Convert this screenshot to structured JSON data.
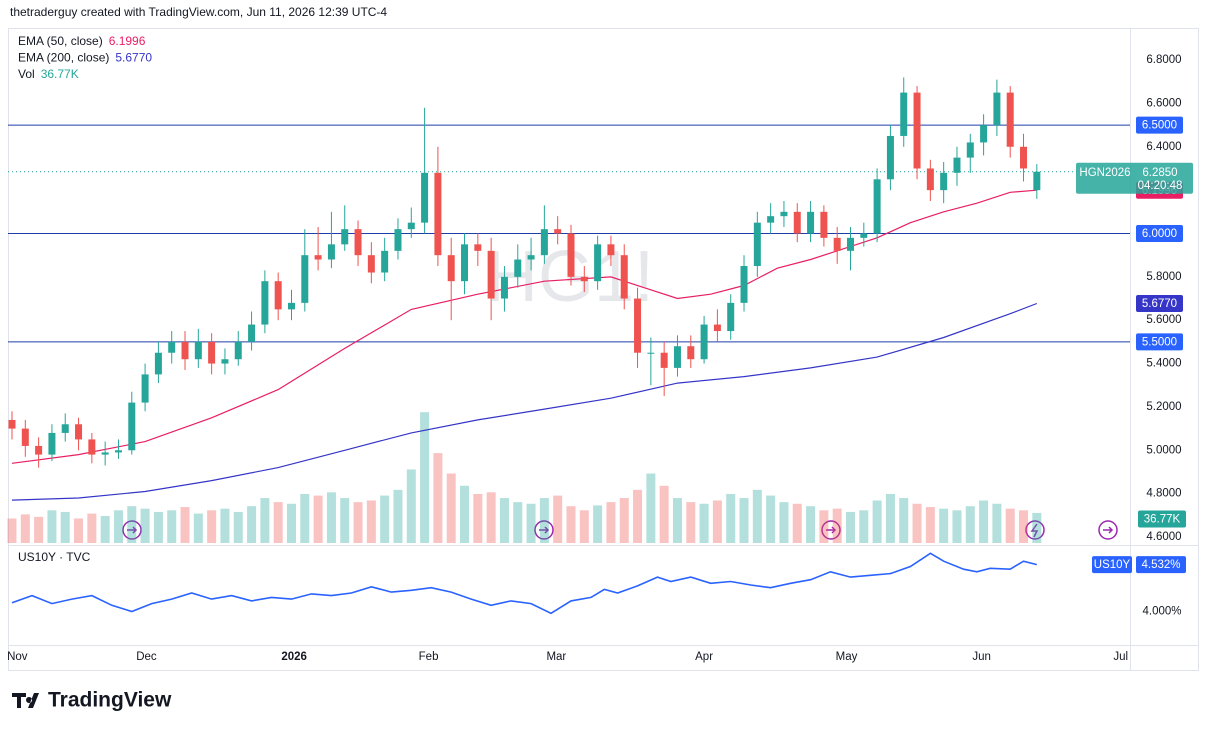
{
  "header": {
    "attribution": "thetraderguy created with TradingView.com, Jun 11, 2026 12:39 UTC-4"
  },
  "chart_data": [
    {
      "type": "candlestick",
      "watermark": "HG1!",
      "symbol": "HGN2026",
      "countdown": "04:20:48",
      "up_color": "#26a69a",
      "down_color": "#ef5350",
      "xlim": [
        -0.6,
        168
      ],
      "ylim": [
        4.563,
        6.948
      ],
      "yticks": [
        {
          "value": 4.6,
          "label": "4.6000"
        },
        {
          "value": 4.8,
          "label": "4.8000"
        },
        {
          "value": 5,
          "label": "5.0000"
        },
        {
          "value": 5.2,
          "label": "5.2000"
        },
        {
          "value": 5.4,
          "label": "5.4000"
        },
        {
          "value": 5.6,
          "label": "5.6000"
        },
        {
          "value": 5.8,
          "label": "5.8000"
        },
        {
          "value": 6,
          "label": "6.0000"
        },
        {
          "value": 6.2,
          "label": "6.2000"
        },
        {
          "value": 6.4,
          "label": "6.4000"
        },
        {
          "value": 6.6,
          "label": "6.6000"
        },
        {
          "value": 6.8,
          "label": "6.8000"
        }
      ],
      "xticks": [
        {
          "value": 0.8,
          "label": "Nov"
        },
        {
          "value": 20.2,
          "label": "Dec"
        },
        {
          "value": 42.4,
          "label": "2026"
        },
        {
          "value": 62.6,
          "label": "Feb"
        },
        {
          "value": 81.8,
          "label": "Mar"
        },
        {
          "value": 104,
          "label": "Apr"
        },
        {
          "value": 125.4,
          "label": "May"
        },
        {
          "value": 145.7,
          "label": "Jun"
        },
        {
          "value": 166.6,
          "label": "Jul"
        }
      ],
      "x": [
        0,
        2,
        4,
        6,
        8,
        10,
        12,
        14,
        16,
        18,
        20,
        22,
        24,
        26,
        28,
        30,
        32,
        34,
        36,
        38,
        40,
        42,
        44,
        46,
        48,
        50,
        52,
        54,
        56,
        58,
        60,
        62,
        64,
        66,
        68,
        70,
        72,
        74,
        76,
        78,
        80,
        82,
        84,
        86,
        88,
        90,
        92,
        94,
        96,
        98,
        100,
        102,
        104,
        106,
        108,
        110,
        112,
        114,
        116,
        118,
        120,
        122,
        124,
        126,
        128,
        130,
        132,
        134,
        136,
        138,
        140,
        142,
        144,
        146,
        148,
        150,
        152,
        154
      ],
      "open": [
        5.14,
        5.1,
        5.02,
        4.98,
        5.08,
        5.12,
        5.05,
        4.98,
        4.99,
        5.0,
        5.22,
        5.35,
        5.45,
        5.5,
        5.42,
        5.5,
        5.4,
        5.42,
        5.5,
        5.58,
        5.78,
        5.65,
        5.68,
        5.9,
        5.88,
        5.95,
        6.02,
        5.9,
        5.82,
        5.92,
        6.02,
        6.05,
        6.28,
        5.9,
        5.78,
        5.95,
        5.92,
        5.7,
        5.8,
        5.88,
        5.9,
        6.02,
        6.0,
        5.8,
        5.78,
        5.95,
        5.9,
        5.7,
        5.45,
        5.45,
        5.38,
        5.48,
        5.42,
        5.58,
        5.55,
        5.68,
        5.85,
        6.05,
        6.08,
        6.1,
        6.0,
        6.1,
        5.98,
        5.92,
        5.98,
        6.0,
        6.25,
        6.45,
        6.65,
        6.3,
        6.2,
        6.28,
        6.35,
        6.42,
        6.5,
        6.65,
        6.4,
        6.2
      ],
      "high": [
        5.18,
        5.14,
        5.06,
        5.12,
        5.17,
        5.15,
        5.08,
        5.04,
        5.05,
        5.27,
        5.4,
        5.5,
        5.55,
        5.55,
        5.56,
        5.54,
        5.47,
        5.55,
        5.64,
        5.83,
        5.82,
        5.74,
        6.02,
        6.03,
        6.1,
        6.13,
        6.06,
        5.96,
        5.98,
        6.07,
        6.12,
        6.58,
        6.4,
        5.98,
        6.0,
        6.0,
        5.98,
        5.85,
        5.95,
        5.98,
        6.13,
        6.08,
        6.04,
        5.85,
        5.99,
        5.99,
        5.95,
        5.75,
        5.52,
        5.5,
        5.53,
        5.53,
        5.62,
        5.65,
        5.72,
        5.9,
        6.1,
        6.14,
        6.15,
        6.14,
        6.15,
        6.13,
        6.03,
        6.03,
        6.05,
        6.3,
        6.5,
        6.72,
        6.68,
        6.34,
        6.33,
        6.4,
        6.46,
        6.55,
        6.71,
        6.68,
        6.46,
        6.32
      ],
      "low": [
        5.05,
        4.97,
        4.92,
        4.95,
        5.04,
        5.0,
        4.94,
        4.93,
        4.96,
        4.98,
        5.18,
        5.31,
        5.4,
        5.37,
        5.38,
        5.35,
        5.35,
        5.39,
        5.46,
        5.54,
        5.6,
        5.6,
        5.64,
        5.83,
        5.84,
        5.92,
        5.85,
        5.77,
        5.78,
        5.88,
        5.98,
        6.0,
        5.85,
        5.6,
        5.72,
        5.85,
        5.6,
        5.64,
        5.75,
        5.83,
        5.86,
        5.95,
        5.76,
        5.73,
        5.74,
        5.85,
        5.65,
        5.38,
        5.3,
        5.25,
        5.34,
        5.38,
        5.4,
        5.5,
        5.51,
        5.64,
        5.8,
        6.0,
        6.03,
        5.96,
        5.96,
        5.94,
        5.86,
        5.83,
        5.94,
        5.96,
        6.2,
        6.4,
        6.25,
        6.15,
        6.14,
        6.22,
        6.28,
        6.36,
        6.45,
        6.35,
        6.24,
        6.16
      ],
      "close": [
        5.1,
        5.02,
        4.98,
        5.08,
        5.12,
        5.05,
        4.98,
        4.99,
        5.0,
        5.22,
        5.35,
        5.45,
        5.5,
        5.42,
        5.5,
        5.4,
        5.42,
        5.5,
        5.58,
        5.78,
        5.65,
        5.68,
        5.9,
        5.88,
        5.95,
        6.02,
        5.9,
        5.82,
        5.92,
        6.02,
        6.05,
        6.28,
        5.9,
        5.78,
        5.95,
        5.92,
        5.7,
        5.8,
        5.88,
        5.9,
        6.02,
        6.0,
        5.8,
        5.78,
        5.95,
        5.9,
        5.7,
        5.45,
        5.45,
        5.38,
        5.48,
        5.42,
        5.58,
        5.55,
        5.68,
        5.85,
        6.05,
        6.08,
        6.1,
        6.0,
        6.1,
        5.98,
        5.92,
        5.98,
        6.0,
        6.25,
        6.45,
        6.65,
        6.3,
        6.2,
        6.28,
        6.35,
        6.42,
        6.5,
        6.65,
        6.4,
        6.3,
        6.285
      ],
      "last_price": {
        "value": 6.285,
        "label": "6.2850"
      },
      "volume": {
        "name": "Vol",
        "ylim": [
          0,
          630
        ],
        "legend_value": {
          "value": 36.77,
          "label": "36.77K"
        },
        "values": [
          30,
          35,
          32,
          40,
          38,
          30,
          36,
          33,
          40,
          45,
          42,
          38,
          40,
          44,
          36,
          40,
          42,
          38,
          45,
          55,
          50,
          48,
          60,
          58,
          62,
          55,
          50,
          52,
          58,
          65,
          90,
          160,
          110,
          85,
          70,
          60,
          62,
          55,
          50,
          48,
          55,
          58,
          45,
          40,
          46,
          50,
          55,
          65,
          85,
          70,
          55,
          50,
          48,
          52,
          60,
          55,
          65,
          58,
          50,
          48,
          45,
          40,
          42,
          38,
          40,
          52,
          60,
          55,
          48,
          44,
          42,
          40,
          45,
          52,
          48,
          42,
          40,
          36.77
        ]
      },
      "lines": [
        {
          "name": "EMA (50, close)",
          "color": "#e91e63",
          "last": 6.1996,
          "x": [
            0,
            10,
            20,
            30,
            40,
            50,
            60,
            70,
            80,
            90,
            95,
            100,
            105,
            110,
            115,
            120,
            125,
            130,
            135,
            140,
            145,
            150,
            154
          ],
          "values": [
            4.94,
            4.98,
            5.04,
            5.15,
            5.28,
            5.47,
            5.65,
            5.72,
            5.78,
            5.8,
            5.75,
            5.7,
            5.72,
            5.76,
            5.84,
            5.88,
            5.93,
            5.98,
            6.05,
            6.1,
            6.14,
            6.19,
            6.1996
          ]
        },
        {
          "name": "EMA (200, close)",
          "color": "#3535c8",
          "last": {
            "value": 5.677,
            "label": "5.6770"
          },
          "x": [
            0,
            10,
            20,
            30,
            40,
            50,
            60,
            70,
            80,
            90,
            100,
            110,
            120,
            130,
            140,
            150,
            154
          ],
          "values": [
            4.77,
            4.78,
            4.81,
            4.86,
            4.92,
            5.0,
            5.08,
            5.14,
            5.19,
            5.24,
            5.31,
            5.34,
            5.38,
            5.43,
            5.52,
            5.63,
            5.677
          ]
        }
      ],
      "levels": [
        {
          "value": 6.5,
          "label": "6.5000"
        },
        {
          "value": 6,
          "label": "6.0000"
        },
        {
          "value": 5.5,
          "label": "5.5000"
        }
      ],
      "level_color": "#1e3fa8"
    },
    {
      "type": "line",
      "title": "US10Y · TVC",
      "color": "#2962ff",
      "xlim": [
        -0.6,
        168
      ],
      "ylim": [
        3.62,
        4.72
      ],
      "yticks": [
        {
          "value": 4,
          "label": "4.000%"
        }
      ],
      "last": {
        "value": 4.532,
        "label": "4.532%"
      },
      "series": [
        {
          "name": "US10Y",
          "x": [
            0,
            3,
            6,
            9,
            12,
            15,
            18,
            21,
            24,
            27,
            30,
            33,
            36,
            39,
            42,
            45,
            48,
            51,
            54,
            57,
            60,
            63,
            66,
            69,
            72,
            75,
            78,
            81,
            84,
            87,
            89,
            91,
            94,
            97,
            99,
            102,
            105,
            108,
            111,
            114,
            117,
            120,
            123,
            126,
            129,
            132,
            135,
            138,
            140,
            143,
            145,
            147,
            150,
            152,
            154
          ],
          "values": [
            4.1,
            4.18,
            4.09,
            4.14,
            4.18,
            4.07,
            4.0,
            4.09,
            4.14,
            4.21,
            4.14,
            4.18,
            4.12,
            4.16,
            4.14,
            4.2,
            4.18,
            4.21,
            4.28,
            4.22,
            4.24,
            4.27,
            4.22,
            4.14,
            4.07,
            4.12,
            4.09,
            3.98,
            4.12,
            4.16,
            4.25,
            4.21,
            4.29,
            4.39,
            4.34,
            4.39,
            4.32,
            4.34,
            4.3,
            4.27,
            4.32,
            4.36,
            4.45,
            4.39,
            4.41,
            4.43,
            4.51,
            4.66,
            4.57,
            4.48,
            4.45,
            4.49,
            4.48,
            4.57,
            4.532
          ]
        }
      ]
    }
  ],
  "footer": {
    "brand": "TradingView"
  }
}
